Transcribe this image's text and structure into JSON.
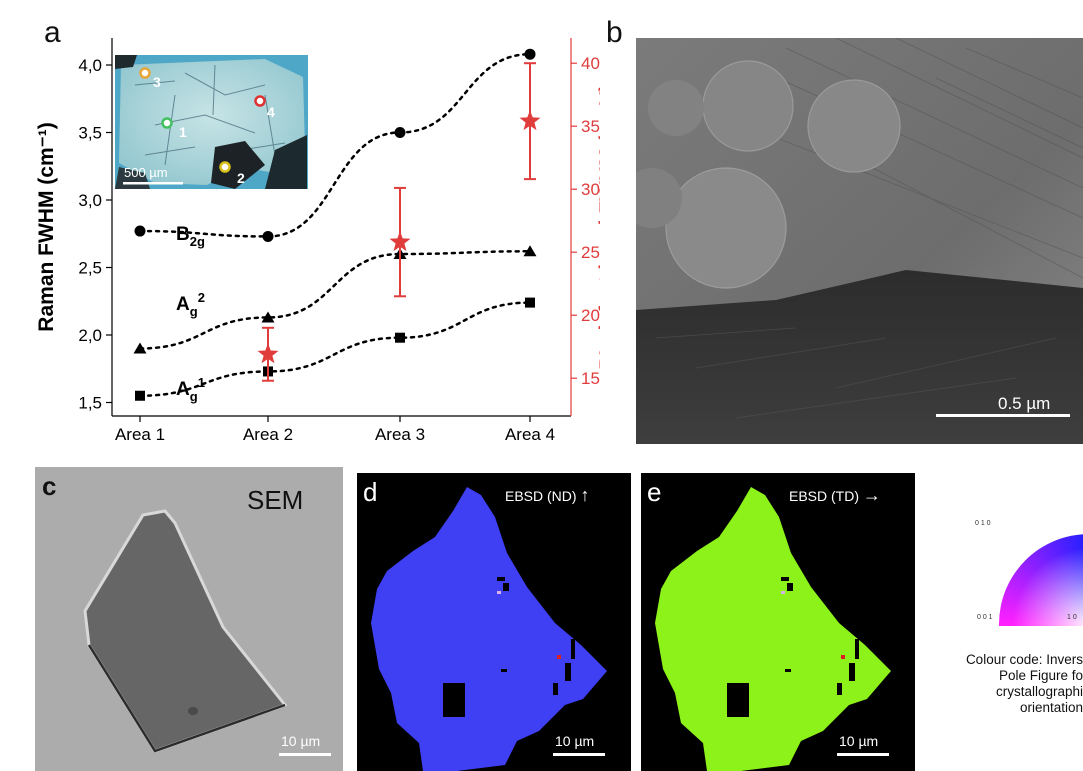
{
  "panels": {
    "a": {
      "label": "a"
    },
    "b": {
      "label": "b",
      "scale_bar": "0.5 µm"
    },
    "c": {
      "label": "c",
      "title": "SEM",
      "scale_bar": "10 µm"
    },
    "d": {
      "label": "d",
      "title": "EBSD (ND)",
      "arrow": "↑",
      "scale_bar": "10 µm",
      "fill_color": "#3f3ff4"
    },
    "e": {
      "label": "e",
      "title": "EBSD (TD)",
      "arrow": "→",
      "scale_bar": "10 µm",
      "fill_color": "#8cf21a"
    }
  },
  "inset": {
    "scale_bar": "500 µm",
    "points": [
      {
        "label": "1",
        "color": "#42c060"
      },
      {
        "label": "2",
        "color": "#d9c21a"
      },
      {
        "label": "3",
        "color": "#e8a53a"
      },
      {
        "label": "4",
        "color": "#e03232"
      }
    ]
  },
  "ipf": {
    "corner_top": "0 1 0",
    "corner_bottom_left": "0 0 1",
    "corner_bottom_right": "1 0",
    "caption": [
      "Colour code: Invers",
      "Pole Figure fo",
      "crystallographi",
      "orientation"
    ]
  },
  "chart_data": {
    "type": "scatter",
    "categories": [
      "Area 1",
      "Area 2",
      "Area 3",
      "Area 4"
    ],
    "ylabel": "Raman FWHM (cm⁻¹)",
    "ylabel_right": "PL defect band FWHM (meV)",
    "ylim": [
      1.4,
      4.2
    ],
    "ylim_right": [
      12,
      42
    ],
    "yticks": [
      "1,5",
      "2,0",
      "2,5",
      "3,0",
      "3,5",
      "4,0"
    ],
    "yticks_right": [
      "15",
      "20",
      "25",
      "30",
      "35",
      "40"
    ],
    "series": [
      {
        "name": "B2g",
        "label_main": "B",
        "label_sub": "2g",
        "label_sup": "",
        "marker": "circle",
        "color": "#000000",
        "axis": "left",
        "values": [
          2.77,
          2.73,
          3.5,
          4.08
        ]
      },
      {
        "name": "Ag2",
        "label_main": "A",
        "label_sub": "g",
        "label_sup": "2",
        "marker": "triangle",
        "color": "#000000",
        "axis": "left",
        "values": [
          1.9,
          2.13,
          2.6,
          2.62
        ]
      },
      {
        "name": "Ag1",
        "label_main": "A",
        "label_sub": "g",
        "label_sup": "1",
        "marker": "square",
        "color": "#000000",
        "axis": "left",
        "values": [
          1.55,
          1.73,
          1.98,
          2.24
        ]
      },
      {
        "name": "PL",
        "marker": "star",
        "color": "#e03c3c",
        "axis": "right",
        "x_index": [
          1,
          2,
          3
        ],
        "values": [
          16.9,
          25.8,
          35.4
        ],
        "errors": [
          2.1,
          4.3,
          4.6
        ]
      }
    ]
  }
}
